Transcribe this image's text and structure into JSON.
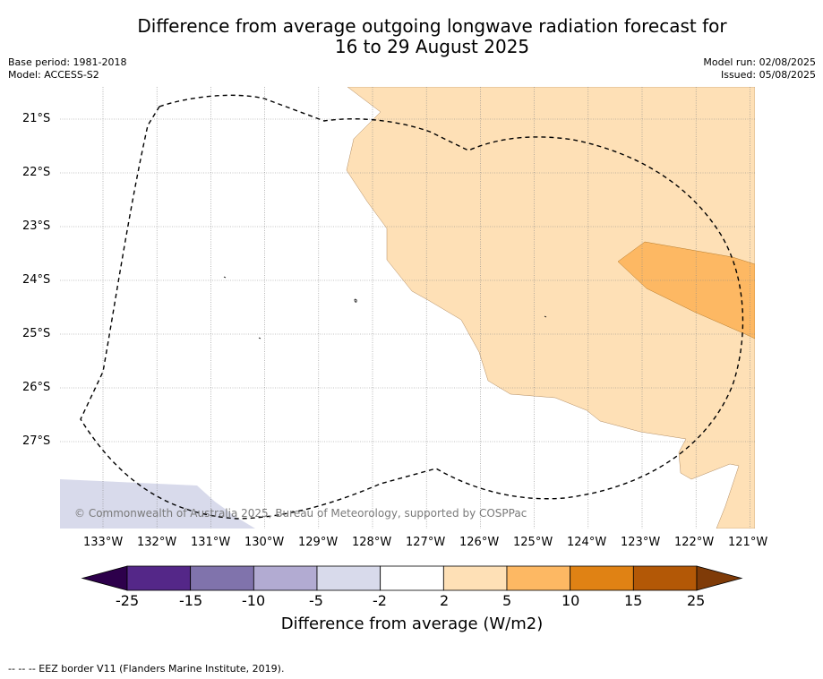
{
  "title": {
    "line1": "Difference from average outgoing longwave radiation forecast for",
    "line2": "16 to 29 August 2025"
  },
  "meta": {
    "base_period": "Base period: 1981-2018",
    "model": "Model: ACCESS-S2",
    "model_run": "Model run: 02/08/2025",
    "issued": "Issued: 05/08/2025"
  },
  "map": {
    "lat_labels": [
      "21°S",
      "22°S",
      "23°S",
      "24°S",
      "25°S",
      "26°S",
      "27°S"
    ],
    "lon_labels": [
      "133°W",
      "132°W",
      "131°W",
      "130°W",
      "129°W",
      "128°W",
      "127°W",
      "126°W",
      "125°W",
      "124°W",
      "123°W",
      "122°W",
      "121°W"
    ],
    "watermark": "© Commonwealth of Australia 2025, Bureau of Meteorology, supported by COSPPac",
    "gridlines": true
  },
  "colorbar": {
    "label": "Difference from average (W/m2)",
    "ticks": [
      "-25",
      "-15",
      "-10",
      "-5",
      "-2",
      "2",
      "5",
      "10",
      "15",
      "25"
    ],
    "colors": [
      "#2d004b",
      "#542788",
      "#8073ac",
      "#b2abd2",
      "#d8daeb",
      "#ffffff",
      "#fee0b6",
      "#fdb863",
      "#e08214",
      "#b35806",
      "#7f3b08"
    ]
  },
  "footnote": "--  --  -- EEZ border V11 (Flanders Marine Institute, 2019)."
}
